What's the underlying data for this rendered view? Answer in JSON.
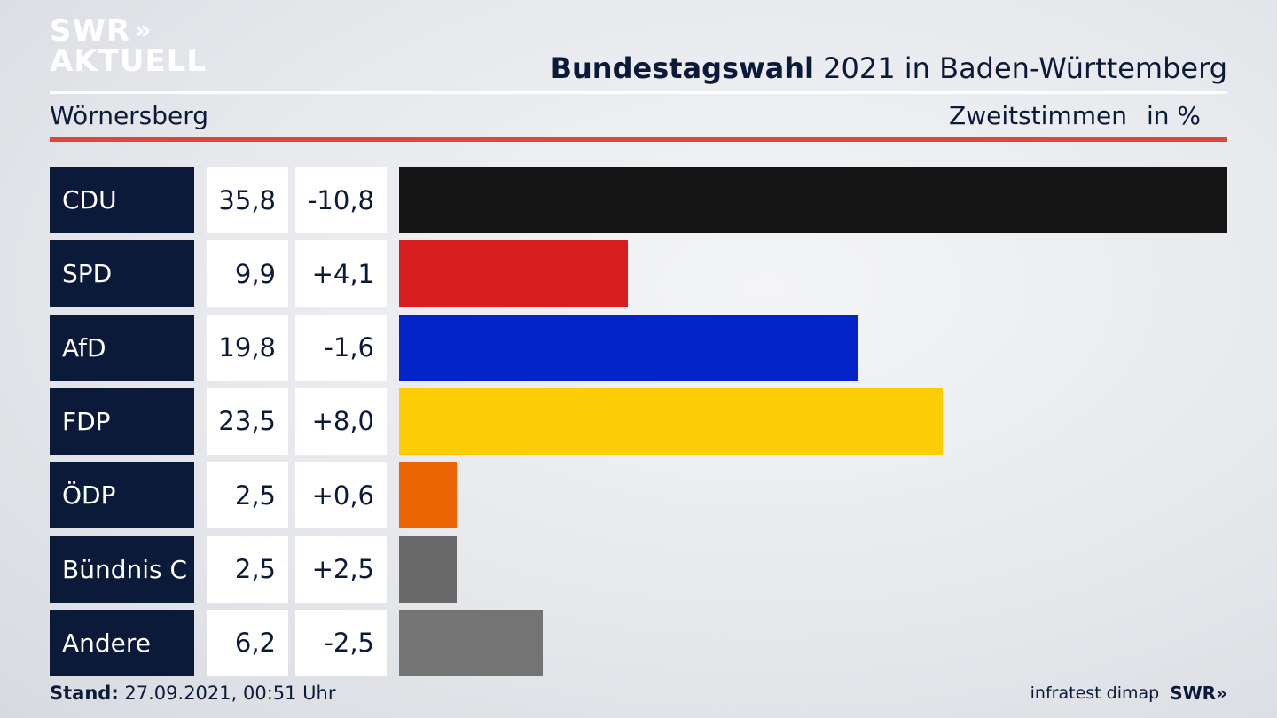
{
  "header": {
    "logo_line1": "SWR",
    "logo_line2": "AKTUELL",
    "title_bold": "Bundestagswahl",
    "title_rest": " 2021 in Baden-Württemberg",
    "region": "Wörnersberg",
    "measure": "Zweitstimmen",
    "unit": "in %"
  },
  "chart_data": {
    "type": "bar",
    "orientation": "horizontal",
    "title": "Bundestagswahl 2021 in Baden-Württemberg",
    "subtitle": "Wörnersberg",
    "ylabel": "Zweitstimmen in %",
    "categories": [
      "CDU",
      "SPD",
      "AfD",
      "FDP",
      "ÖDP",
      "Bündnis C",
      "Andere"
    ],
    "values": [
      35.8,
      9.9,
      19.8,
      23.5,
      2.5,
      2.5,
      6.2
    ],
    "value_labels": [
      "35,8",
      "9,9",
      "19,8",
      "23,5",
      "2,5",
      "2,5",
      "6,2"
    ],
    "diff_labels": [
      "-10,8",
      "+4,1",
      "-1,6",
      "+8,0",
      "+0,6",
      "+2,5",
      "-2,5"
    ],
    "colors": [
      "#141414",
      "#d81f1f",
      "#0424c8",
      "#fdcd08",
      "#ec6403",
      "#696969",
      "#747474"
    ],
    "xlim": [
      0,
      35.8
    ]
  },
  "footer": {
    "stand_label": "Stand:",
    "stand_value": " 27.09.2021, 00:51 Uhr",
    "source": "infratest dimap",
    "brand": "SWR"
  }
}
